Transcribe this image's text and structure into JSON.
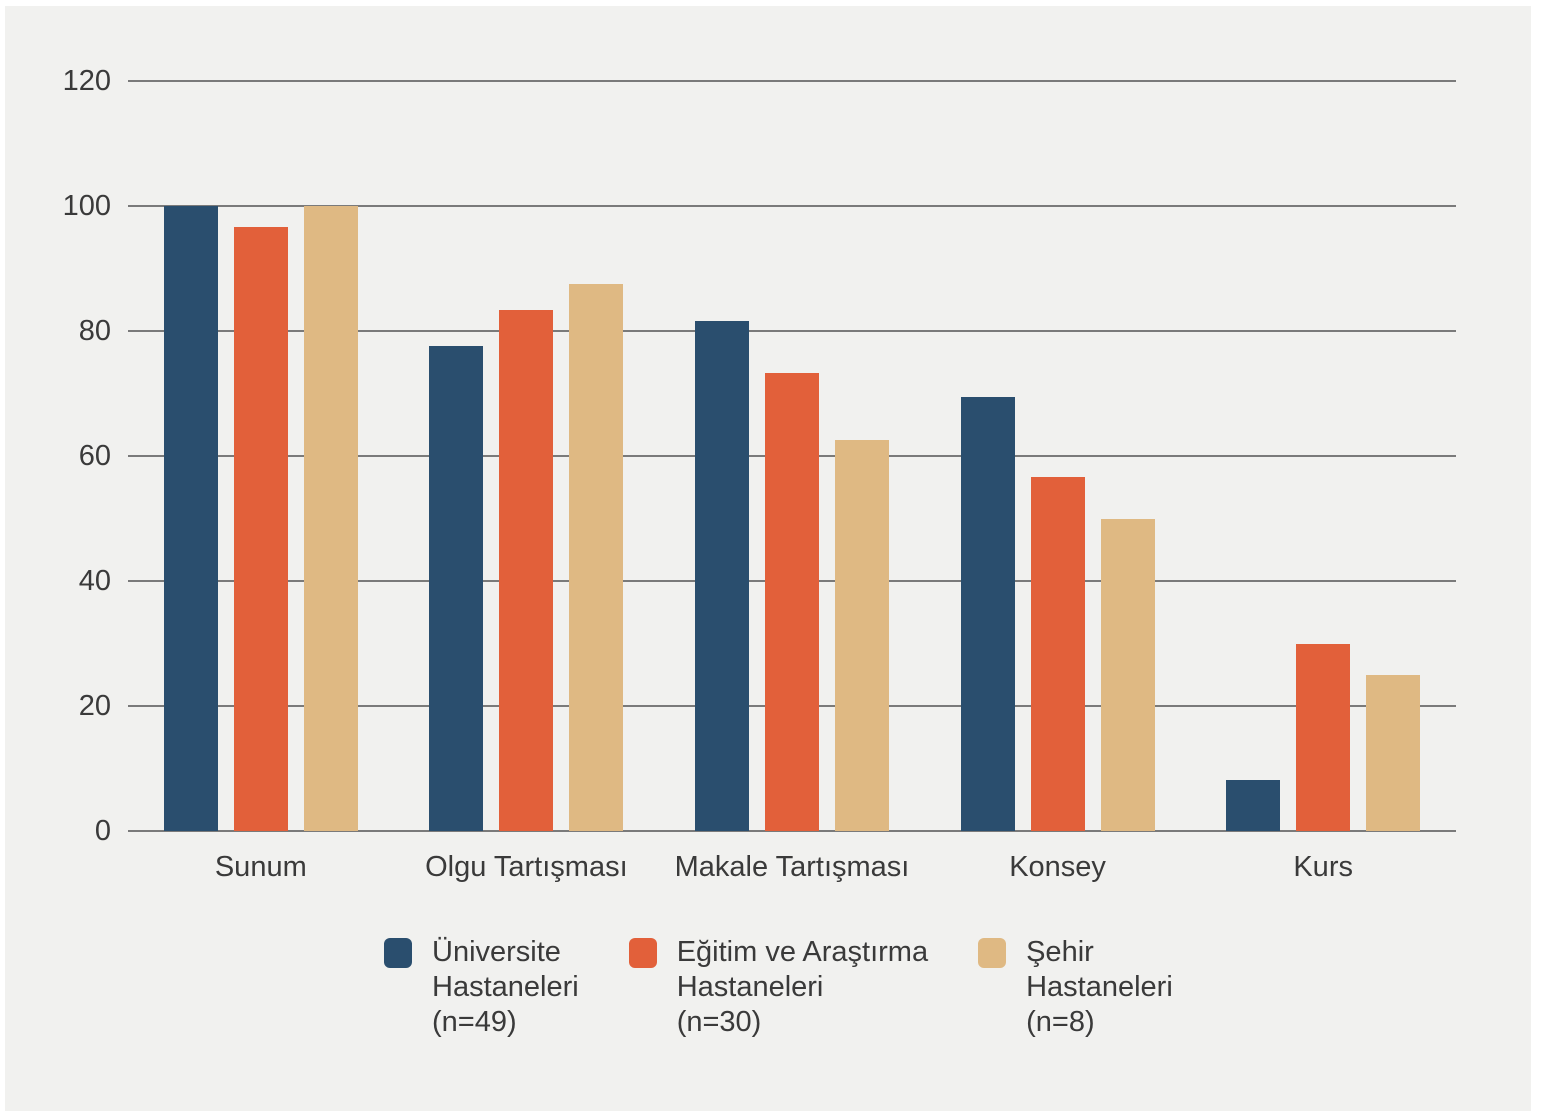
{
  "chart_data": {
    "type": "bar",
    "title": "",
    "xlabel": "",
    "ylabel": "",
    "categories": [
      "Sunum",
      "Olgu Tartışması",
      "Makale Tartışması",
      "Konsey",
      "Kurs"
    ],
    "series": [
      {
        "name": "Üniversite Hastaneleri (n=49)",
        "legend_lines": [
          "Üniversite",
          "Hastaneleri",
          "(n=49)"
        ],
        "color": "#2A4E6E",
        "values": [
          100,
          77.6,
          81.6,
          69.4,
          8.2
        ]
      },
      {
        "name": "Eğitim ve Araştırma Hastaneleri (n=30)",
        "legend_lines": [
          "Eğitim ve Araştırma",
          "Hastaneleri",
          "(n=30)"
        ],
        "color": "#E2603A",
        "values": [
          96.7,
          83.3,
          73.3,
          56.7,
          30
        ]
      },
      {
        "name": "Şehir Hastaneleri (n=8)",
        "legend_lines": [
          "Şehir",
          "Hastaneleri",
          "(n=8)"
        ],
        "color": "#DFB983",
        "values": [
          100,
          87.5,
          62.5,
          50,
          25
        ]
      }
    ],
    "ylim": [
      0,
      120
    ],
    "yticks": [
      0,
      20,
      40,
      60,
      80,
      100,
      120
    ],
    "grid": true,
    "legend_position": "bottom"
  },
  "colors": {
    "page_background": "#FFFFFF",
    "chart_background": "#F1F1EF",
    "gridline": "#7A7A7A",
    "text": "#3A3A3A"
  }
}
